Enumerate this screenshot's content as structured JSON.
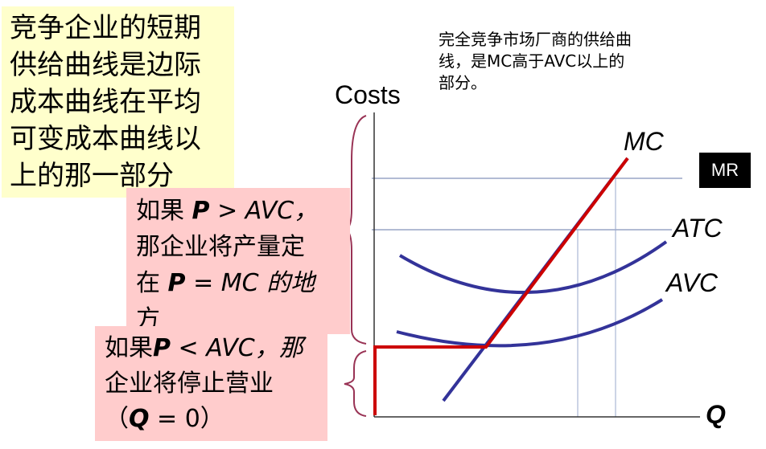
{
  "notes": {
    "yellow": [
      "竞争企业的短期",
      "供给曲线是边际",
      "成本曲线在平均",
      "可变成本曲线以",
      "上的那一部分"
    ],
    "high": {
      "line1_prefix": "如果 ",
      "line1_p": "P",
      "line1_rest": " > AVC，",
      "line2": "那企业将产量定",
      "line3_prefix": "在 ",
      "line3_p": "P",
      "line3_rest": " = MC 的地",
      "line4": "方"
    },
    "low": {
      "line1_prefix": "如果",
      "line1_p": "P",
      "line1_rest": " < AVC，那",
      "line2": "企业将停止营业",
      "line3_prefix": "（",
      "line3_q": "Q",
      "line3_rest": " = 0）"
    },
    "caption": [
      "完全竞争市场厂商的供给曲",
      "线，是MC高于AVC以上的",
      "部分。"
    ]
  },
  "graph": {
    "y_axis_label": "Costs",
    "x_axis_label": "Q",
    "curves": {
      "mc": "MC",
      "atc": "ATC",
      "avc": "AVC"
    },
    "mr_badge": "MR",
    "colors": {
      "supply": "#cc0000",
      "curve": "#333399",
      "guide": "#6677aa",
      "brace": "#993355"
    }
  }
}
